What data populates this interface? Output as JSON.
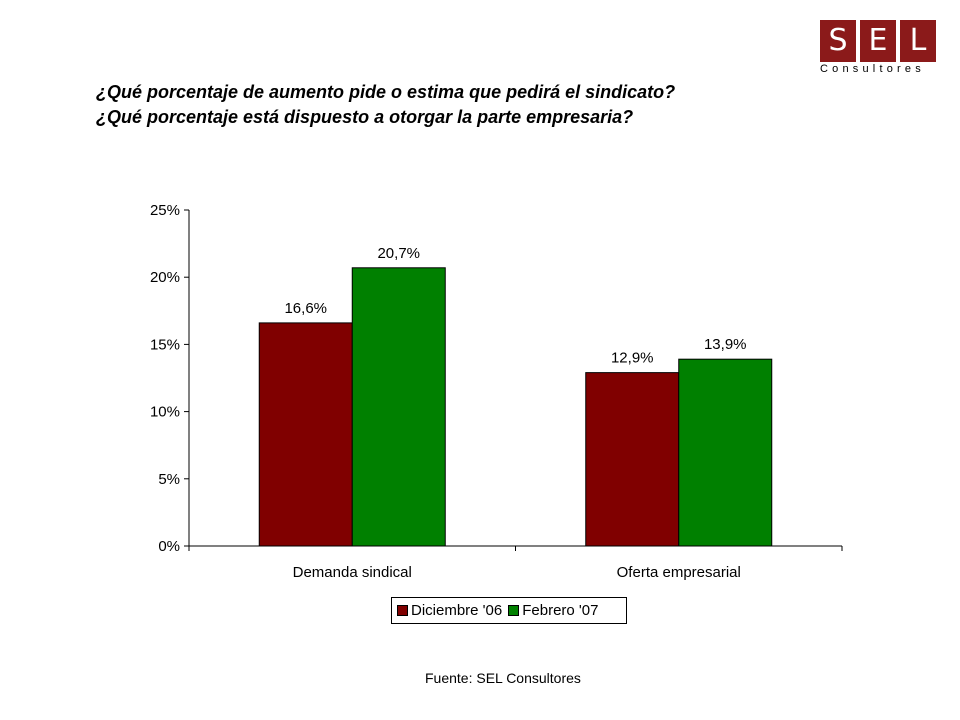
{
  "logo": {
    "letters": [
      "S",
      "E",
      "L"
    ],
    "subtitle": "Consultores",
    "color": "#8b1a1a"
  },
  "title_lines": [
    "¿Qué porcentaje de aumento pide o estima que pedirá el sindicato?",
    "¿Qué porcentaje está dispuesto a otorgar la parte empresaria?"
  ],
  "chart_data": {
    "type": "bar",
    "categories": [
      "Demanda sindical",
      "Oferta empresarial"
    ],
    "series": [
      {
        "name": "Diciembre '06",
        "values": [
          16.6,
          12.9
        ],
        "labels": [
          "16,6%",
          "12,9%"
        ],
        "color": "#800000"
      },
      {
        "name": "Febrero '07",
        "values": [
          20.7,
          13.9
        ],
        "labels": [
          "20,7%",
          "13,9%"
        ],
        "color": "#008000"
      }
    ],
    "ylim": [
      0,
      25
    ],
    "yticks": [
      0,
      5,
      10,
      15,
      20,
      25
    ],
    "ytick_labels": [
      "0%",
      "5%",
      "10%",
      "15%",
      "20%",
      "25%"
    ],
    "grid": false,
    "legend_position": "bottom"
  },
  "source": "Fuente: SEL Consultores"
}
